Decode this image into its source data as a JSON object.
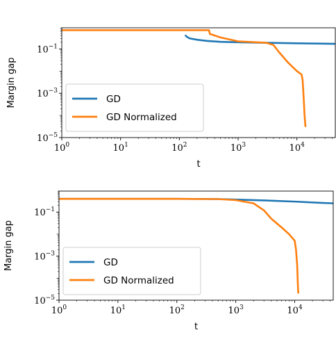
{
  "chart_data": [
    {
      "type": "line",
      "title": "",
      "xlabel": "t",
      "ylabel": "Margin gap",
      "xscale": "log",
      "yscale": "log",
      "xlim": [
        1,
        45000
      ],
      "ylim": [
        1e-05,
        0.9
      ],
      "legend_position": "lower-left",
      "x_ticks": [
        {
          "value": 1,
          "base": "10",
          "exp": "0"
        },
        {
          "value": 10,
          "base": "10",
          "exp": "1"
        },
        {
          "value": 100,
          "base": "10",
          "exp": "2"
        },
        {
          "value": 1000,
          "base": "10",
          "exp": "3"
        },
        {
          "value": 10000,
          "base": "10",
          "exp": "4"
        }
      ],
      "y_ticks": [
        {
          "value": 0.1,
          "base": "10",
          "exp": "−1"
        },
        {
          "value": 0.001,
          "base": "10",
          "exp": "−3"
        },
        {
          "value": 1e-05,
          "base": "10",
          "exp": "−5"
        }
      ],
      "series": [
        {
          "name": "GD",
          "color": "#1f77b4",
          "points": [
            [
              125,
              0.42
            ],
            [
              135,
              0.35
            ],
            [
              150,
              0.3
            ],
            [
              200,
              0.26
            ],
            [
              300,
              0.23
            ],
            [
              500,
              0.21
            ],
            [
              1000,
              0.2
            ],
            [
              3000,
              0.19
            ],
            [
              10000,
              0.18
            ],
            [
              45000,
              0.17
            ]
          ]
        },
        {
          "name": "GD Normalized",
          "color": "#ff7f0e",
          "points": [
            [
              1,
              0.7
            ],
            [
              100,
              0.7
            ],
            [
              320,
              0.7
            ],
            [
              330,
              0.48
            ],
            [
              500,
              0.33
            ],
            [
              1000,
              0.22
            ],
            [
              2000,
              0.2
            ],
            [
              3000,
              0.19
            ],
            [
              4000,
              0.15
            ],
            [
              5000,
              0.07
            ],
            [
              7000,
              0.025
            ],
            [
              10000,
              0.01
            ],
            [
              12000,
              0.007
            ],
            [
              12500,
              0.004
            ],
            [
              13000,
              0.0007
            ],
            [
              13500,
              0.0001
            ],
            [
              14000,
              3e-05
            ]
          ]
        }
      ]
    },
    {
      "type": "line",
      "title": "",
      "xlabel": "t",
      "ylabel": "Margin gap",
      "xscale": "log",
      "yscale": "log",
      "xlim": [
        1,
        45000
      ],
      "ylim": [
        1e-05,
        0.9
      ],
      "legend_position": "lower-left",
      "x_ticks": [
        {
          "value": 1,
          "base": "10",
          "exp": "0"
        },
        {
          "value": 10,
          "base": "10",
          "exp": "1"
        },
        {
          "value": 100,
          "base": "10",
          "exp": "2"
        },
        {
          "value": 1000,
          "base": "10",
          "exp": "3"
        },
        {
          "value": 10000,
          "base": "10",
          "exp": "4"
        }
      ],
      "y_ticks": [
        {
          "value": 0.1,
          "base": "10",
          "exp": "−1"
        },
        {
          "value": 0.001,
          "base": "10",
          "exp": "−3"
        },
        {
          "value": 1e-05,
          "base": "10",
          "exp": "−5"
        }
      ],
      "series": [
        {
          "name": "GD",
          "color": "#1f77b4",
          "points": [
            [
              1,
              0.4
            ],
            [
              100,
              0.4
            ],
            [
              500,
              0.39
            ],
            [
              1000,
              0.37
            ],
            [
              3000,
              0.34
            ],
            [
              10000,
              0.3
            ],
            [
              30000,
              0.26
            ],
            [
              45000,
              0.25
            ]
          ]
        },
        {
          "name": "GD Normalized",
          "color": "#ff7f0e",
          "points": [
            [
              1,
              0.4
            ],
            [
              100,
              0.4
            ],
            [
              500,
              0.39
            ],
            [
              1000,
              0.35
            ],
            [
              2000,
              0.25
            ],
            [
              3000,
              0.12
            ],
            [
              4000,
              0.05
            ],
            [
              6000,
              0.02
            ],
            [
              8000,
              0.01
            ],
            [
              10000,
              0.005
            ],
            [
              10500,
              0.002
            ],
            [
              11000,
              0.0004
            ],
            [
              11300,
              5e-05
            ],
            [
              11500,
              2e-05
            ]
          ]
        }
      ]
    }
  ]
}
